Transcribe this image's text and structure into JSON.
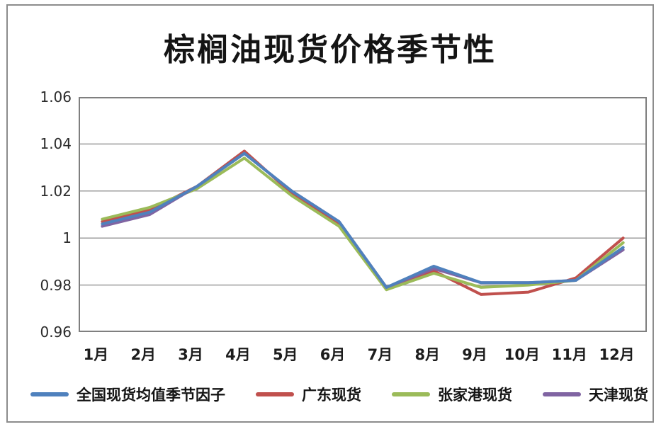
{
  "title": "棕榈油现货价格季节性",
  "chart_data": {
    "type": "line",
    "title": "棕榈油现货价格季节性",
    "categories": [
      "1月",
      "2月",
      "3月",
      "4月",
      "5月",
      "6月",
      "7月",
      "8月",
      "9月",
      "10月",
      "11月",
      "12月"
    ],
    "series": [
      {
        "name": "全国现货均值季节因子",
        "color": "#4F81BD",
        "values": [
          1.006,
          1.011,
          1.022,
          1.036,
          1.02,
          1.007,
          0.979,
          0.988,
          0.981,
          0.981,
          0.982,
          0.996
        ]
      },
      {
        "name": "广东现货",
        "color": "#C0504D",
        "values": [
          1.007,
          1.012,
          1.022,
          1.037,
          1.019,
          1.006,
          0.979,
          0.986,
          0.976,
          0.977,
          0.983,
          1.0
        ]
      },
      {
        "name": "张家港现货",
        "color": "#9BBB59",
        "values": [
          1.008,
          1.013,
          1.021,
          1.034,
          1.018,
          1.005,
          0.978,
          0.985,
          0.979,
          0.98,
          0.982,
          0.998
        ]
      },
      {
        "name": "天津现货",
        "color": "#8064A2",
        "values": [
          1.005,
          1.01,
          1.022,
          1.036,
          1.02,
          1.007,
          0.979,
          0.987,
          0.981,
          0.981,
          0.982,
          0.995
        ]
      }
    ],
    "xlabel": "",
    "ylabel": "",
    "ylim": [
      0.96,
      1.06
    ],
    "ytick_values": [
      0.96,
      0.98,
      1.0,
      1.02,
      1.04,
      1.06
    ],
    "ytick_labels": [
      "0.96",
      "0.98",
      "1",
      "1.02",
      "1.04",
      "1.06"
    ],
    "grid": "horizontal",
    "gridline_values": [
      0.98,
      1.0,
      1.02,
      1.04
    ],
    "legend_position": "bottom",
    "plot_border_color": "#7f7f7f",
    "gridline_color": "#9c9c9c"
  }
}
